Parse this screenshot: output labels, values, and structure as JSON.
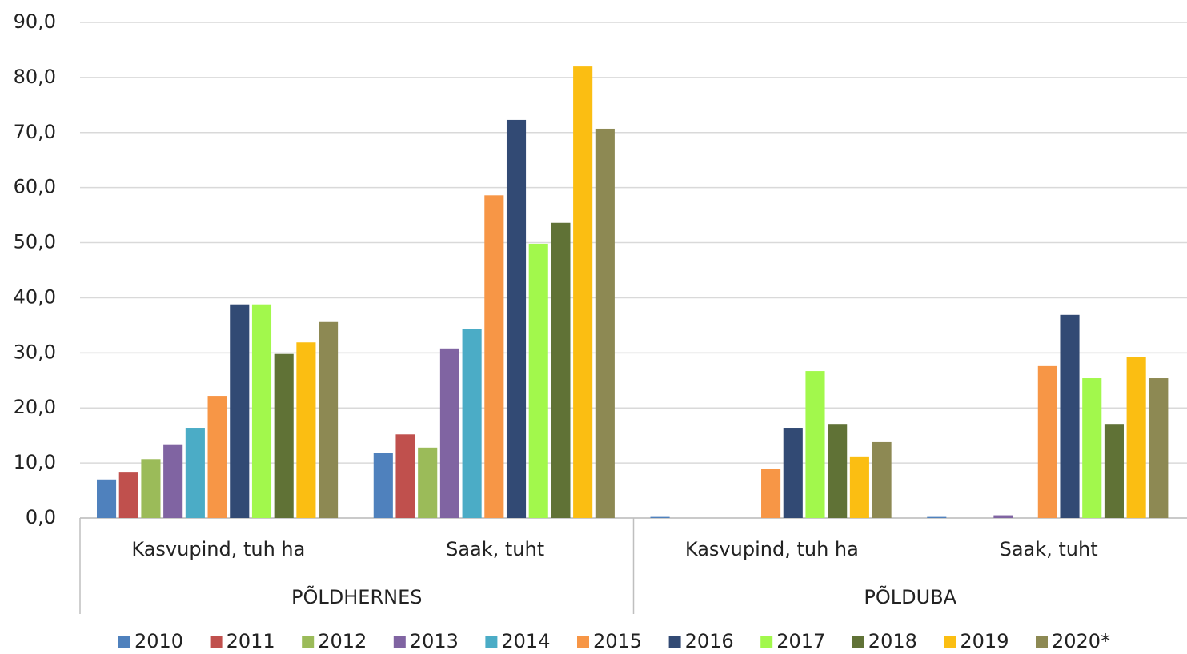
{
  "chart_data": {
    "type": "bar",
    "categories": [
      "Kasvupind, tuh ha",
      "Saak, tuht",
      "Kasvupind, tuh ha",
      "Saak, tuht"
    ],
    "category_groups": [
      "PÕLDHERNES",
      "PÕLDUBA"
    ],
    "ylim": [
      0,
      90
    ],
    "yticks": [
      {
        "value": 0,
        "label": "0,0"
      },
      {
        "value": 10,
        "label": "10,0"
      },
      {
        "value": 20,
        "label": "20,0"
      },
      {
        "value": 30,
        "label": "30,0"
      },
      {
        "value": 40,
        "label": "40,0"
      },
      {
        "value": 50,
        "label": "50,0"
      },
      {
        "value": 60,
        "label": "60,0"
      },
      {
        "value": 70,
        "label": "70,0"
      },
      {
        "value": 80,
        "label": "80,0"
      },
      {
        "value": 90,
        "label": "90,0"
      }
    ],
    "grid": true,
    "legend": "bottom",
    "series": [
      {
        "name": "2010",
        "color": "#4f81bd",
        "values": [
          7.0,
          11.9,
          0.2,
          0.2
        ]
      },
      {
        "name": "2011",
        "color": "#c0504d",
        "values": [
          8.4,
          15.2,
          0,
          0
        ]
      },
      {
        "name": "2012",
        "color": "#9bbb59",
        "values": [
          10.7,
          12.8,
          0,
          0
        ]
      },
      {
        "name": "2013",
        "color": "#8064a2",
        "values": [
          13.4,
          30.8,
          0,
          0.5
        ]
      },
      {
        "name": "2014",
        "color": "#4bacc6",
        "values": [
          16.4,
          34.3,
          0,
          0
        ]
      },
      {
        "name": "2015",
        "color": "#f79646",
        "values": [
          22.2,
          58.6,
          9.0,
          27.6
        ]
      },
      {
        "name": "2016",
        "color": "#324a74",
        "values": [
          38.8,
          72.3,
          16.4,
          36.9
        ]
      },
      {
        "name": "2017",
        "color": "#a2f84c",
        "values": [
          38.8,
          49.8,
          26.7,
          25.4
        ]
      },
      {
        "name": "2018",
        "color": "#607236",
        "values": [
          29.8,
          53.6,
          17.1,
          17.1
        ]
      },
      {
        "name": "2019",
        "color": "#fbbe12",
        "values": [
          31.9,
          82.0,
          11.2,
          29.3
        ]
      },
      {
        "name": "2020*",
        "color": "#8d8953",
        "values": [
          35.6,
          70.7,
          13.8,
          25.4
        ]
      }
    ]
  }
}
